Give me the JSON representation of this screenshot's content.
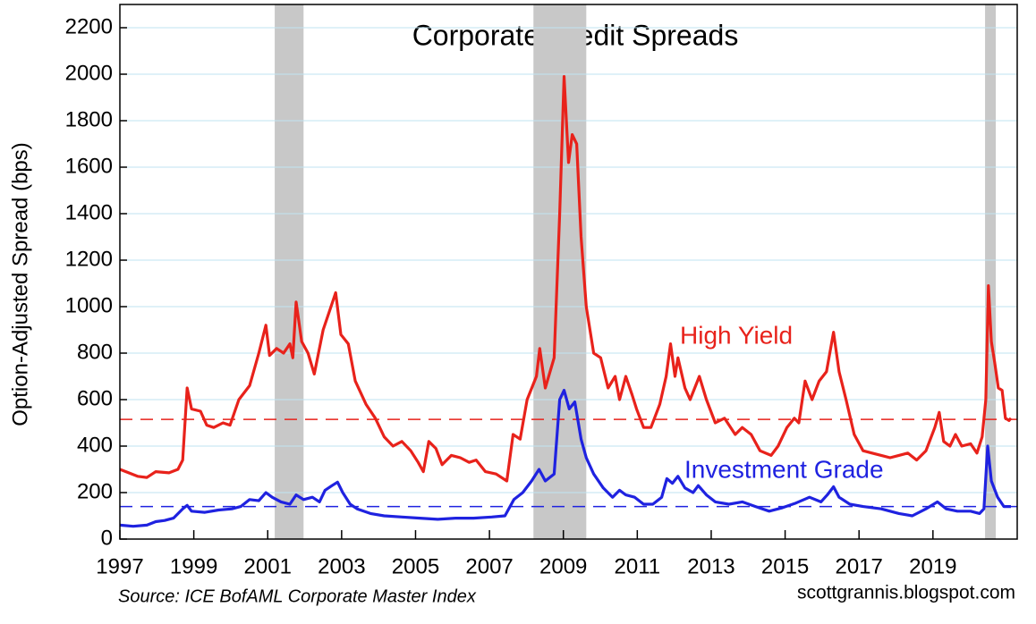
{
  "chart_data": {
    "type": "line",
    "title": "Corporate Credit Spreads",
    "y_label": "Option-Adjusted Spread (bps)",
    "source": "Source: ICE BofAML Corporate Master Index",
    "credit": "scottgrannis.blogspot.com",
    "xlim": [
      1997,
      2021.28
    ],
    "xticks": [
      1997,
      1999,
      2001,
      2003,
      2005,
      2007,
      2009,
      2011,
      2013,
      2015,
      2017,
      2019
    ],
    "ylim": [
      0,
      2300
    ],
    "yticks": [
      0,
      200,
      400,
      600,
      800,
      1000,
      1200,
      1400,
      1600,
      1800,
      2000,
      2200
    ],
    "grid": true,
    "shaded_regions": [
      [
        2001.19,
        2001.97
      ],
      [
        2008.19,
        2009.62
      ],
      [
        2020.41,
        2020.7
      ]
    ],
    "shade_color": "#c8c8c8",
    "series": [
      {
        "name": "High Yield",
        "color": "#e8221b",
        "average": 515,
        "x": [
          1997.0,
          1997.24,
          1997.48,
          1997.73,
          1997.97,
          1998.33,
          1998.57,
          1998.7,
          1998.77,
          1998.82,
          1998.94,
          1999.18,
          1999.35,
          1999.54,
          1999.79,
          1999.98,
          2000.22,
          2000.51,
          2000.76,
          2000.95,
          2001.05,
          2001.24,
          2001.43,
          2001.6,
          2001.68,
          2001.77,
          2001.92,
          2002.09,
          2002.26,
          2002.5,
          2002.69,
          2002.84,
          2002.98,
          2003.18,
          2003.37,
          2003.66,
          2003.91,
          2004.15,
          2004.39,
          2004.63,
          2004.87,
          2005.07,
          2005.21,
          2005.36,
          2005.55,
          2005.72,
          2005.97,
          2006.21,
          2006.45,
          2006.64,
          2006.89,
          2007.18,
          2007.47,
          2007.64,
          2007.83,
          2008.02,
          2008.27,
          2008.36,
          2008.51,
          2008.75,
          2008.9,
          2009.02,
          2009.14,
          2009.24,
          2009.36,
          2009.48,
          2009.62,
          2009.82,
          2010.01,
          2010.21,
          2010.4,
          2010.52,
          2010.69,
          2010.86,
          2010.98,
          2011.17,
          2011.37,
          2011.61,
          2011.78,
          2011.9,
          2012.02,
          2012.1,
          2012.29,
          2012.43,
          2012.68,
          2012.87,
          2013.11,
          2013.36,
          2013.65,
          2013.84,
          2014.08,
          2014.32,
          2014.62,
          2014.81,
          2015.05,
          2015.25,
          2015.37,
          2015.54,
          2015.73,
          2015.92,
          2016.12,
          2016.31,
          2016.46,
          2016.65,
          2016.87,
          2017.11,
          2017.35,
          2017.6,
          2017.84,
          2018.08,
          2018.32,
          2018.56,
          2018.81,
          2019.05,
          2019.17,
          2019.29,
          2019.46,
          2019.61,
          2019.78,
          2020.02,
          2020.19,
          2020.33,
          2020.43,
          2020.5,
          2020.58,
          2020.67,
          2020.77,
          2020.87,
          2020.96,
          2021.06,
          2021.11
        ],
        "values": [
          300,
          285,
          270,
          265,
          290,
          285,
          300,
          340,
          520,
          650,
          560,
          550,
          490,
          480,
          500,
          490,
          600,
          660,
          800,
          920,
          790,
          820,
          800,
          840,
          780,
          1020,
          850,
          800,
          710,
          900,
          990,
          1060,
          880,
          840,
          680,
          580,
          520,
          440,
          400,
          420,
          380,
          330,
          290,
          420,
          390,
          320,
          360,
          350,
          330,
          340,
          290,
          280,
          250,
          450,
          430,
          600,
          700,
          820,
          650,
          780,
          1400,
          1990,
          1620,
          1740,
          1700,
          1300,
          1000,
          800,
          780,
          650,
          700,
          600,
          700,
          620,
          560,
          480,
          480,
          580,
          700,
          840,
          700,
          780,
          650,
          600,
          700,
          600,
          500,
          520,
          450,
          480,
          450,
          380,
          360,
          400,
          480,
          520,
          500,
          680,
          600,
          680,
          720,
          890,
          720,
          600,
          450,
          380,
          370,
          360,
          350,
          360,
          370,
          340,
          380,
          480,
          545,
          420,
          400,
          450,
          400,
          410,
          370,
          440,
          600,
          1090,
          850,
          760,
          650,
          640,
          520,
          510,
          520
        ]
      },
      {
        "name": "Investment Grade",
        "color": "#1f22e0",
        "average": 140,
        "x": [
          1997.0,
          1997.36,
          1997.73,
          1997.97,
          1998.21,
          1998.45,
          1998.7,
          1998.82,
          1998.94,
          1999.3,
          1999.67,
          2000.03,
          2000.27,
          2000.51,
          2000.76,
          2000.95,
          2001.12,
          2001.36,
          2001.6,
          2001.77,
          2001.97,
          2002.21,
          2002.4,
          2002.55,
          2002.74,
          2002.89,
          2003.03,
          2003.23,
          2003.42,
          2003.78,
          2004.15,
          2004.63,
          2005.12,
          2005.6,
          2006.09,
          2006.57,
          2007.06,
          2007.42,
          2007.66,
          2007.9,
          2008.14,
          2008.34,
          2008.51,
          2008.75,
          2008.9,
          2009.02,
          2009.16,
          2009.31,
          2009.48,
          2009.62,
          2009.82,
          2010.08,
          2010.33,
          2010.52,
          2010.69,
          2010.93,
          2011.17,
          2011.42,
          2011.66,
          2011.8,
          2011.95,
          2012.1,
          2012.29,
          2012.51,
          2012.65,
          2012.87,
          2013.11,
          2013.48,
          2013.84,
          2014.2,
          2014.57,
          2014.93,
          2015.29,
          2015.66,
          2015.97,
          2016.14,
          2016.31,
          2016.46,
          2016.75,
          2017.11,
          2017.6,
          2018.08,
          2018.44,
          2018.81,
          2019.12,
          2019.36,
          2019.66,
          2020.02,
          2020.26,
          2020.38,
          2020.48,
          2020.58,
          2020.75,
          2020.92,
          2021.11
        ],
        "values": [
          60,
          55,
          60,
          75,
          80,
          90,
          130,
          145,
          120,
          115,
          125,
          130,
          140,
          170,
          165,
          200,
          180,
          160,
          150,
          190,
          170,
          180,
          160,
          210,
          230,
          245,
          200,
          150,
          130,
          110,
          100,
          95,
          90,
          85,
          90,
          90,
          95,
          100,
          170,
          200,
          250,
          300,
          250,
          280,
          600,
          640,
          560,
          590,
          430,
          350,
          280,
          220,
          180,
          210,
          190,
          180,
          150,
          150,
          180,
          260,
          240,
          270,
          220,
          200,
          230,
          190,
          160,
          150,
          160,
          140,
          120,
          135,
          155,
          180,
          160,
          190,
          225,
          180,
          150,
          140,
          130,
          110,
          100,
          130,
          160,
          130,
          120,
          120,
          110,
          130,
          400,
          250,
          180,
          140,
          140
        ]
      }
    ]
  }
}
